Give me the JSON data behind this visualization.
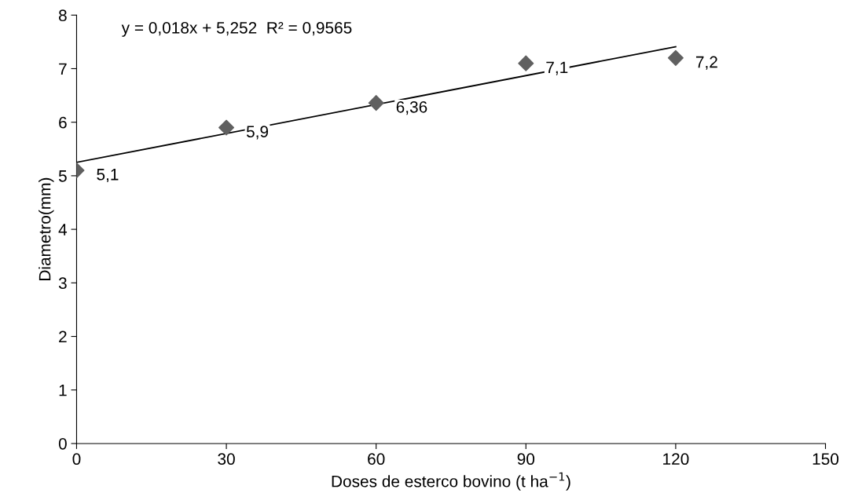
{
  "chart_data": {
    "type": "scatter",
    "xlabel": "Doses de esterco bovino (t ha$^{−1}$)",
    "ylabel": "Diametro(mm)",
    "annotations": [
      "y = 0,018x + 5,252  R² = 0,9565"
    ],
    "xlim": [
      0,
      150
    ],
    "xticks": [
      0,
      30,
      60,
      90,
      120,
      150
    ],
    "ylim": [
      0,
      8
    ],
    "yticks": [
      0,
      1,
      2,
      3,
      4,
      5,
      6,
      7,
      8
    ],
    "grid": false,
    "legend": false,
    "series": [
      {
        "color": "#606060",
        "marker": "diamond",
        "x": [
          0,
          30,
          60,
          90,
          120
        ],
        "values": [
          5.1,
          5.9,
          6.36,
          7.1,
          7.2
        ],
        "value_labels": [
          "5,1",
          "5,9",
          "6,36",
          "7,1",
          "7,2"
        ]
      },
      {
        "type": "line",
        "color": "#000000",
        "marker": "none",
        "line_style": "solid",
        "x": [
          0,
          120
        ],
        "values": [
          5.25,
          7.41
        ]
      }
    ]
  }
}
